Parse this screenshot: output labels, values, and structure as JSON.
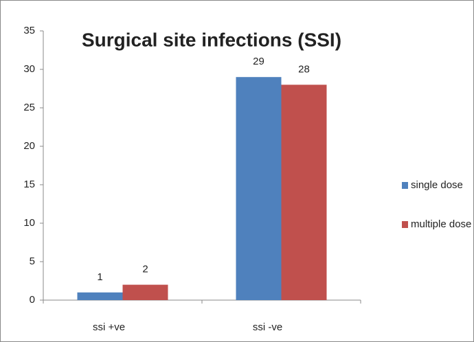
{
  "chart_data": {
    "type": "bar",
    "title": "Surgical site infections (SSI)",
    "categories": [
      "ssi +ve",
      "ssi -ve"
    ],
    "series": [
      {
        "name": "single dose",
        "color": "#4f81bd",
        "values": [
          1,
          29
        ]
      },
      {
        "name": "multiple dose",
        "color": "#c0504d",
        "values": [
          2,
          28
        ]
      }
    ],
    "ylim": [
      0,
      35
    ],
    "yticks": [
      0,
      5,
      10,
      15,
      20,
      25,
      30,
      35
    ],
    "grid": false,
    "legend": "right"
  }
}
